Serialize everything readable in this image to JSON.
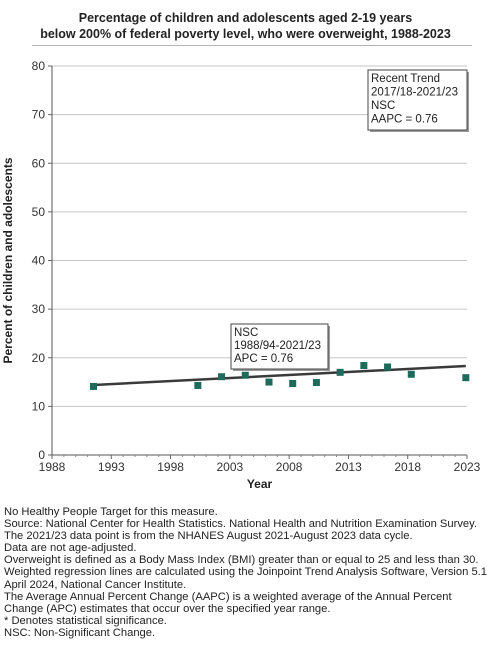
{
  "header": {
    "title_line1": "Percentage of children and adolescents aged 2-19 years",
    "title_line2": "below 200% of federal poverty level, who were overweight, 1988-2023"
  },
  "chart_data": {
    "type": "scatter",
    "xlabel": "Year",
    "ylabel": "Percent of children and adolescents",
    "xlim": [
      1988,
      2023
    ],
    "ylim": [
      0,
      80
    ],
    "x_ticks": [
      1988,
      1993,
      1998,
      2003,
      2008,
      2013,
      2018,
      2023
    ],
    "y_ticks": [
      0,
      10,
      20,
      30,
      40,
      50,
      60,
      70,
      80
    ],
    "grid": "horizontal",
    "points": [
      {
        "x": 1991.5,
        "y": 14.1
      },
      {
        "x": 2000.3,
        "y": 14.3
      },
      {
        "x": 2002.3,
        "y": 16.1
      },
      {
        "x": 2004.3,
        "y": 16.4
      },
      {
        "x": 2006.3,
        "y": 15.0
      },
      {
        "x": 2008.3,
        "y": 14.7
      },
      {
        "x": 2010.3,
        "y": 14.9
      },
      {
        "x": 2012.3,
        "y": 17.0
      },
      {
        "x": 2014.3,
        "y": 18.4
      },
      {
        "x": 2016.3,
        "y": 18.1
      },
      {
        "x": 2018.3,
        "y": 16.6
      },
      {
        "x": 2022.9,
        "y": 15.9
      }
    ],
    "trend_line": [
      {
        "x": 1991.5,
        "y": 14.4
      },
      {
        "x": 2022.9,
        "y": 18.3
      }
    ],
    "annotations": [
      {
        "lines": [
          "NSC",
          "1988/94-2021/23",
          "APC =  0.76"
        ],
        "anchor": "trend-line-start"
      },
      {
        "lines": [
          "Recent Trend",
          "2017/18-2021/23",
          "NSC",
          "AAPC =  0.76"
        ],
        "anchor": "top-right"
      }
    ],
    "colors": {
      "marker": "#1e6b5c",
      "trend": "#3a3a3a",
      "grid": "#c6c6c6"
    }
  },
  "notes": [
    "No Healthy People Target for this measure.",
    "Source: National Center for Health Statistics. National Health and Nutrition Examination Survey.",
    "The 2021/23 data point is from the NHANES August 2021-August 2023 data cycle.",
    "Data are not age-adjusted.",
    "Overweight is defined as a Body Mass Index (BMI) greater than or equal to 25 and less than 30.",
    "Weighted regression lines are calculated using the Joinpoint Trend Analysis Software, Version 5.1 April 2024, National Cancer Institute.",
    "The Average Annual Percent Change (AAPC) is a weighted average of the Annual Percent Change (APC) estimates that occur over the specified year range.",
    "* Denotes statistical significance.",
    "NSC: Non-Significant Change."
  ]
}
